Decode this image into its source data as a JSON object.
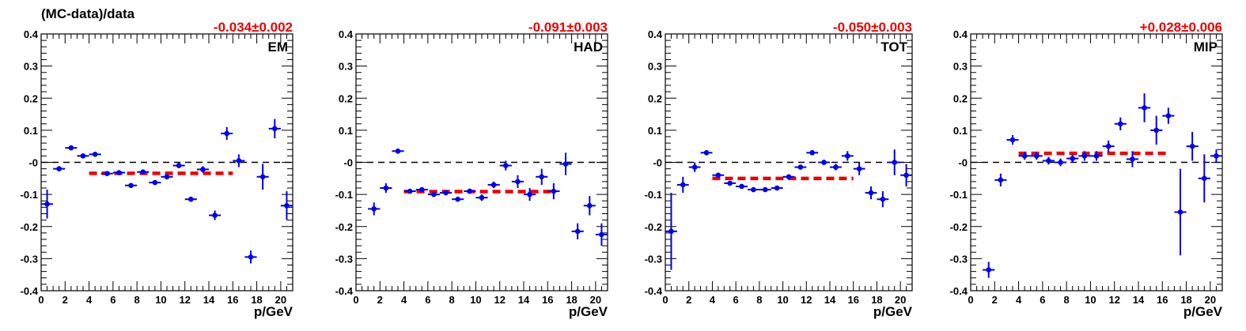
{
  "figure": {
    "ylabel": "(MC-data)/data",
    "xlabel": "p/GeV"
  },
  "colors": {
    "points": "#0000ee",
    "fit": "#ee0000",
    "fit_label": "#ee0000",
    "zero_line": "#000000",
    "axis": "#000000"
  },
  "chart_data": [
    {
      "type": "scatter",
      "panel_label": "EM",
      "fit_label": "-0.034±0.002",
      "xlabel": "p/GeV",
      "ylabel": "(MC-data)/data",
      "xlim": [
        0,
        21
      ],
      "ylim": [
        -0.4,
        0.4
      ],
      "x_ticks": [
        "0",
        "2",
        "4",
        "6",
        "8",
        "10",
        "12",
        "14",
        "16",
        "18",
        "20"
      ],
      "y_ticks": [
        "-0.4",
        "-0.3",
        "-0.2",
        "-0.1",
        "-0",
        "0.1",
        "0.2",
        "0.3",
        "0.4"
      ],
      "zero_line": 0,
      "fit": {
        "x_range": [
          4,
          16
        ],
        "value": -0.034
      },
      "points": [
        {
          "x": 0.5,
          "y": -0.13,
          "yerr": 0.045
        },
        {
          "x": 1.5,
          "y": -0.02,
          "yerr": 0.008
        },
        {
          "x": 2.5,
          "y": 0.045,
          "yerr": 0.005
        },
        {
          "x": 3.5,
          "y": 0.02,
          "yerr": 0.005
        },
        {
          "x": 4.5,
          "y": 0.025,
          "yerr": 0.005
        },
        {
          "x": 5.5,
          "y": -0.035,
          "yerr": 0.005
        },
        {
          "x": 6.5,
          "y": -0.032,
          "yerr": 0.005
        },
        {
          "x": 7.5,
          "y": -0.072,
          "yerr": 0.005
        },
        {
          "x": 8.5,
          "y": -0.03,
          "yerr": 0.006
        },
        {
          "x": 9.5,
          "y": -0.063,
          "yerr": 0.006
        },
        {
          "x": 10.5,
          "y": -0.045,
          "yerr": 0.008
        },
        {
          "x": 11.5,
          "y": -0.01,
          "yerr": 0.008
        },
        {
          "x": 12.5,
          "y": -0.115,
          "yerr": 0.008
        },
        {
          "x": 13.5,
          "y": -0.022,
          "yerr": 0.01
        },
        {
          "x": 14.5,
          "y": -0.165,
          "yerr": 0.015
        },
        {
          "x": 15.5,
          "y": 0.09,
          "yerr": 0.02
        },
        {
          "x": 16.5,
          "y": 0.005,
          "yerr": 0.02
        },
        {
          "x": 17.5,
          "y": -0.295,
          "yerr": 0.02
        },
        {
          "x": 18.5,
          "y": -0.045,
          "yerr": 0.04
        },
        {
          "x": 19.5,
          "y": 0.105,
          "yerr": 0.03
        },
        {
          "x": 20.5,
          "y": -0.135,
          "yerr": 0.045
        }
      ]
    },
    {
      "type": "scatter",
      "panel_label": "HAD",
      "fit_label": "-0.091±0.003",
      "xlabel": "p/GeV",
      "ylabel": "",
      "xlim": [
        0,
        21
      ],
      "ylim": [
        -0.4,
        0.4
      ],
      "x_ticks": [
        "0",
        "2",
        "4",
        "6",
        "8",
        "10",
        "12",
        "14",
        "16",
        "18",
        "20"
      ],
      "y_ticks": [
        "-0.4",
        "-0.3",
        "-0.2",
        "-0.1",
        "-0",
        "0.1",
        "0.2",
        "0.3",
        "0.4"
      ],
      "zero_line": 0,
      "fit": {
        "x_range": [
          4,
          16.5
        ],
        "value": -0.091
      },
      "points": [
        {
          "x": 1.5,
          "y": -0.145,
          "yerr": 0.02
        },
        {
          "x": 2.5,
          "y": -0.08,
          "yerr": 0.015
        },
        {
          "x": 3.5,
          "y": 0.035,
          "yerr": 0.008
        },
        {
          "x": 4.5,
          "y": -0.09,
          "yerr": 0.006
        },
        {
          "x": 5.5,
          "y": -0.085,
          "yerr": 0.006
        },
        {
          "x": 6.5,
          "y": -0.1,
          "yerr": 0.006
        },
        {
          "x": 7.5,
          "y": -0.095,
          "yerr": 0.006
        },
        {
          "x": 8.5,
          "y": -0.115,
          "yerr": 0.006
        },
        {
          "x": 9.5,
          "y": -0.09,
          "yerr": 0.008
        },
        {
          "x": 10.5,
          "y": -0.11,
          "yerr": 0.01
        },
        {
          "x": 11.5,
          "y": -0.07,
          "yerr": 0.01
        },
        {
          "x": 12.5,
          "y": -0.01,
          "yerr": 0.015
        },
        {
          "x": 13.5,
          "y": -0.06,
          "yerr": 0.02
        },
        {
          "x": 14.5,
          "y": -0.1,
          "yerr": 0.02
        },
        {
          "x": 15.5,
          "y": -0.045,
          "yerr": 0.025
        },
        {
          "x": 16.5,
          "y": -0.09,
          "yerr": 0.025
        },
        {
          "x": 17.5,
          "y": -0.005,
          "yerr": 0.035
        },
        {
          "x": 18.5,
          "y": -0.215,
          "yerr": 0.025
        },
        {
          "x": 19.5,
          "y": -0.135,
          "yerr": 0.03
        },
        {
          "x": 20.5,
          "y": -0.225,
          "yerr": 0.035
        }
      ]
    },
    {
      "type": "scatter",
      "panel_label": "TOT",
      "fit_label": "-0.050±0.003",
      "xlabel": "p/GeV",
      "ylabel": "",
      "xlim": [
        0,
        21
      ],
      "ylim": [
        -0.4,
        0.4
      ],
      "x_ticks": [
        "0",
        "2",
        "4",
        "6",
        "8",
        "10",
        "12",
        "14",
        "16",
        "18",
        "20"
      ],
      "y_ticks": [
        "-0.4",
        "-0.3",
        "-0.2",
        "-0.1",
        "-0",
        "0.1",
        "0.2",
        "0.3",
        "0.4"
      ],
      "zero_line": 0,
      "fit": {
        "x_range": [
          4,
          16
        ],
        "value": -0.05
      },
      "points": [
        {
          "x": 0.5,
          "y": -0.215,
          "yerr": 0.12
        },
        {
          "x": 1.5,
          "y": -0.07,
          "yerr": 0.025
        },
        {
          "x": 2.5,
          "y": -0.015,
          "yerr": 0.015
        },
        {
          "x": 3.5,
          "y": 0.03,
          "yerr": 0.008
        },
        {
          "x": 4.5,
          "y": -0.04,
          "yerr": 0.006
        },
        {
          "x": 5.5,
          "y": -0.065,
          "yerr": 0.005
        },
        {
          "x": 6.5,
          "y": -0.075,
          "yerr": 0.005
        },
        {
          "x": 7.5,
          "y": -0.085,
          "yerr": 0.005
        },
        {
          "x": 8.5,
          "y": -0.085,
          "yerr": 0.005
        },
        {
          "x": 9.5,
          "y": -0.08,
          "yerr": 0.006
        },
        {
          "x": 10.5,
          "y": -0.045,
          "yerr": 0.006
        },
        {
          "x": 11.5,
          "y": -0.015,
          "yerr": 0.006
        },
        {
          "x": 12.5,
          "y": 0.03,
          "yerr": 0.008
        },
        {
          "x": 13.5,
          "y": 0.0,
          "yerr": 0.008
        },
        {
          "x": 14.5,
          "y": -0.015,
          "yerr": 0.01
        },
        {
          "x": 15.5,
          "y": 0.02,
          "yerr": 0.015
        },
        {
          "x": 16.5,
          "y": -0.02,
          "yerr": 0.02
        },
        {
          "x": 17.5,
          "y": -0.095,
          "yerr": 0.02
        },
        {
          "x": 18.5,
          "y": -0.115,
          "yerr": 0.025
        },
        {
          "x": 19.5,
          "y": 0.0,
          "yerr": 0.04
        },
        {
          "x": 20.5,
          "y": -0.04,
          "yerr": 0.035
        }
      ]
    },
    {
      "type": "scatter",
      "panel_label": "MIP",
      "fit_label": "+0.028±0.006",
      "xlabel": "p/GeV",
      "ylabel": "",
      "xlim": [
        0,
        21
      ],
      "ylim": [
        -0.4,
        0.4
      ],
      "x_ticks": [
        "0",
        "2",
        "4",
        "6",
        "8",
        "10",
        "12",
        "14",
        "16",
        "18",
        "20"
      ],
      "y_ticks": [
        "-0.4",
        "-0.3",
        "-0.2",
        "-0.1",
        "-0",
        "0.1",
        "0.2",
        "0.3",
        "0.4"
      ],
      "zero_line": 0,
      "fit": {
        "x_range": [
          4,
          16.5
        ],
        "value": 0.028
      },
      "points": [
        {
          "x": 1.5,
          "y": -0.335,
          "yerr": 0.025
        },
        {
          "x": 2.5,
          "y": -0.055,
          "yerr": 0.02
        },
        {
          "x": 3.5,
          "y": 0.07,
          "yerr": 0.015
        },
        {
          "x": 4.5,
          "y": 0.02,
          "yerr": 0.012
        },
        {
          "x": 5.5,
          "y": 0.02,
          "yerr": 0.012
        },
        {
          "x": 6.5,
          "y": 0.005,
          "yerr": 0.012
        },
        {
          "x": 7.5,
          "y": 0.0,
          "yerr": 0.012
        },
        {
          "x": 8.5,
          "y": 0.012,
          "yerr": 0.012
        },
        {
          "x": 9.5,
          "y": 0.02,
          "yerr": 0.015
        },
        {
          "x": 10.5,
          "y": 0.02,
          "yerr": 0.015
        },
        {
          "x": 11.5,
          "y": 0.05,
          "yerr": 0.018
        },
        {
          "x": 12.5,
          "y": 0.12,
          "yerr": 0.02
        },
        {
          "x": 13.5,
          "y": 0.01,
          "yerr": 0.025
        },
        {
          "x": 14.5,
          "y": 0.17,
          "yerr": 0.045
        },
        {
          "x": 15.5,
          "y": 0.1,
          "yerr": 0.045
        },
        {
          "x": 16.5,
          "y": 0.145,
          "yerr": 0.025
        },
        {
          "x": 17.5,
          "y": -0.155,
          "yerr": 0.135
        },
        {
          "x": 18.5,
          "y": 0.05,
          "yerr": 0.045
        },
        {
          "x": 19.5,
          "y": -0.05,
          "yerr": 0.075
        },
        {
          "x": 20.5,
          "y": 0.02,
          "yerr": 0.02
        }
      ]
    }
  ]
}
